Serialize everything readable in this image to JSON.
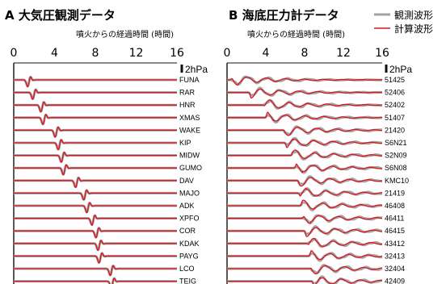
{
  "chart_data": [
    {
      "type": "line",
      "title": "A 大気圧観測データ",
      "xlabel": "噴火からの経過時間 (時間)",
      "ylabel": "",
      "xlim": [
        0,
        16
      ],
      "xticks": [
        "0",
        "4",
        "8",
        "12",
        "16"
      ],
      "scale_label": "2hPa",
      "stations": [
        "FUNA",
        "RAR",
        "HNR",
        "XMAS",
        "WAKE",
        "KIP",
        "MIDW",
        "GUMO",
        "DAV",
        "MAJO",
        "ADK",
        "XPFO",
        "COR",
        "KDAK",
        "PAYG",
        "LCO",
        "TEIG"
      ],
      "arrival_hours": [
        1.5,
        2.0,
        2.8,
        3.0,
        4.2,
        4.5,
        4.8,
        5.0,
        6.2,
        7.0,
        7.3,
        7.8,
        8.2,
        8.4,
        8.5,
        9.6,
        9.7
      ]
    },
    {
      "type": "line",
      "title": "B 海底圧力計データ",
      "xlabel": "噴火からの経過時間 (時間)",
      "ylabel": "",
      "xlim": [
        0,
        16
      ],
      "xticks": [
        "0",
        "4",
        "8",
        "12",
        "16"
      ],
      "scale_label": "2hPa",
      "legend": [
        "観測波形",
        "計算波形"
      ],
      "stations": [
        "51425",
        "52406",
        "52402",
        "51407",
        "21420",
        "S6N21",
        "S2N09",
        "S6N08",
        "KMC10",
        "21419",
        "46408",
        "46411",
        "46415",
        "43412",
        "32413",
        "32404",
        "42409"
      ],
      "arrival_hours": [
        0.6,
        2.5,
        4.0,
        4.2,
        6.0,
        6.2,
        6.8,
        7.2,
        7.5,
        7.6,
        7.8,
        8.0,
        8.2,
        8.5,
        8.7,
        8.8,
        9.0
      ]
    }
  ],
  "colors": {
    "observed": "#a3a3a3",
    "computed": "#d8141e",
    "axis": "#111111"
  }
}
